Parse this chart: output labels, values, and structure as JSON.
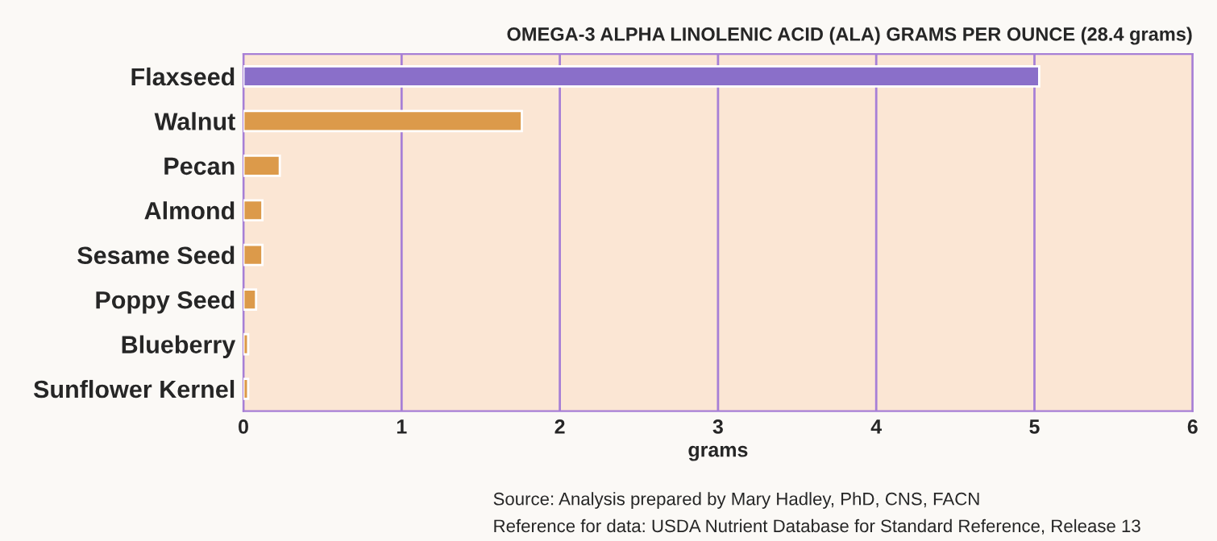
{
  "chart_data": {
    "type": "bar",
    "orientation": "horizontal",
    "title": "OMEGA-3 ALPHA LINOLENIC ACID (ALA) GRAMS PER OUNCE (28.4 grams)",
    "xlabel": "grams",
    "categories": [
      "Flaxseed",
      "Walnut",
      "Pecan",
      "Almond",
      "Sesame Seed",
      "Poppy Seed",
      "Blueberry",
      "Sunflower Kernel"
    ],
    "values": [
      5.03,
      1.76,
      0.23,
      0.12,
      0.12,
      0.08,
      0.03,
      0.03
    ],
    "colors": [
      "#8a6fc9",
      "#dc9a4a",
      "#dc9a4a",
      "#dc9a4a",
      "#dc9a4a",
      "#dc9a4a",
      "#dc9a4a",
      "#dc9a4a"
    ],
    "xlim": [
      0,
      6
    ],
    "xticks": [
      0,
      1,
      2,
      3,
      4,
      5,
      6
    ],
    "grid": "x",
    "annotations": [
      "Source: Analysis prepared by Mary Hadley, PhD, CNS, FACN",
      "Reference for data: USDA Nutrient Database for Standard Reference, Release 13"
    ]
  }
}
